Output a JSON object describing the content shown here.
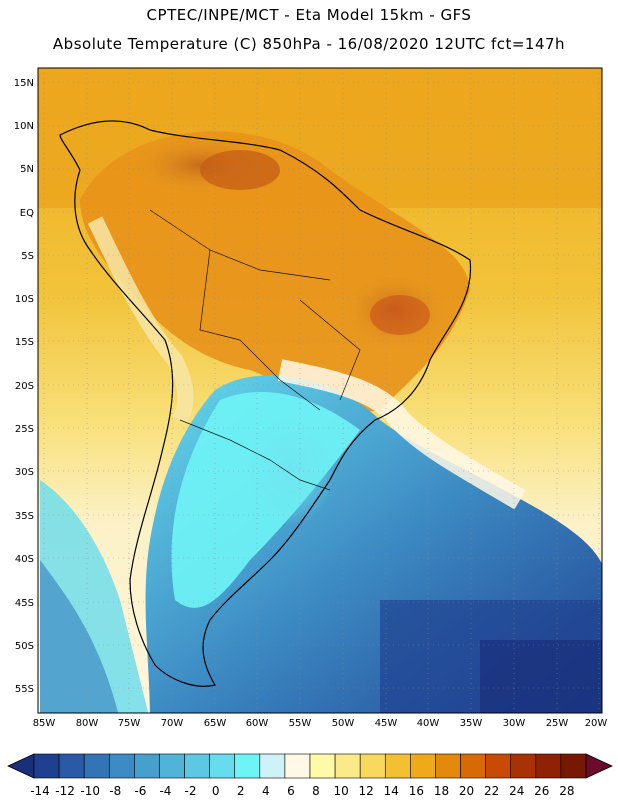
{
  "header": {
    "line1": "CPTEC/INPE/MCT -  Eta Model 15km - GFS",
    "line2": "Absolute Temperature (C) 850hPa - 16/08/2020 12UTC fct=147h"
  },
  "map": {
    "lat_labels": [
      "15N",
      "10N",
      "5N",
      "EQ",
      "5S",
      "10S",
      "15S",
      "20S",
      "25S",
      "30S",
      "35S",
      "40S",
      "45S",
      "50S",
      "55S"
    ],
    "lon_labels": [
      "85W",
      "80W",
      "75W",
      "70W",
      "65W",
      "60W",
      "55W",
      "50W",
      "45W",
      "40W",
      "35W",
      "30W",
      "25W",
      "20W"
    ],
    "region": "South America",
    "field": "Temperature at 850 hPa"
  },
  "colorbar": {
    "labels": [
      "-14",
      "-12",
      "-10",
      "-8",
      "-6",
      "-4",
      "-2",
      "0",
      "2",
      "4",
      "6",
      "8",
      "10",
      "12",
      "14",
      "16",
      "18",
      "20",
      "22",
      "24",
      "26",
      "28"
    ],
    "colors": [
      "#1f3f8f",
      "#2a5aa6",
      "#3374b6",
      "#3d8bc4",
      "#479fce",
      "#50b4d8",
      "#5cc8e2",
      "#66dcec",
      "#6ff4f6",
      "#cdf3f7",
      "#fff8e6",
      "#fffaa8",
      "#fbe98a",
      "#f8d85f",
      "#f2c033",
      "#eeaa1a",
      "#e38a0c",
      "#d76a07",
      "#c74b05",
      "#a93204",
      "#8f2204",
      "#751903"
    ],
    "under_color": "#1a2f7a",
    "over_color": "#6b0a2a"
  }
}
